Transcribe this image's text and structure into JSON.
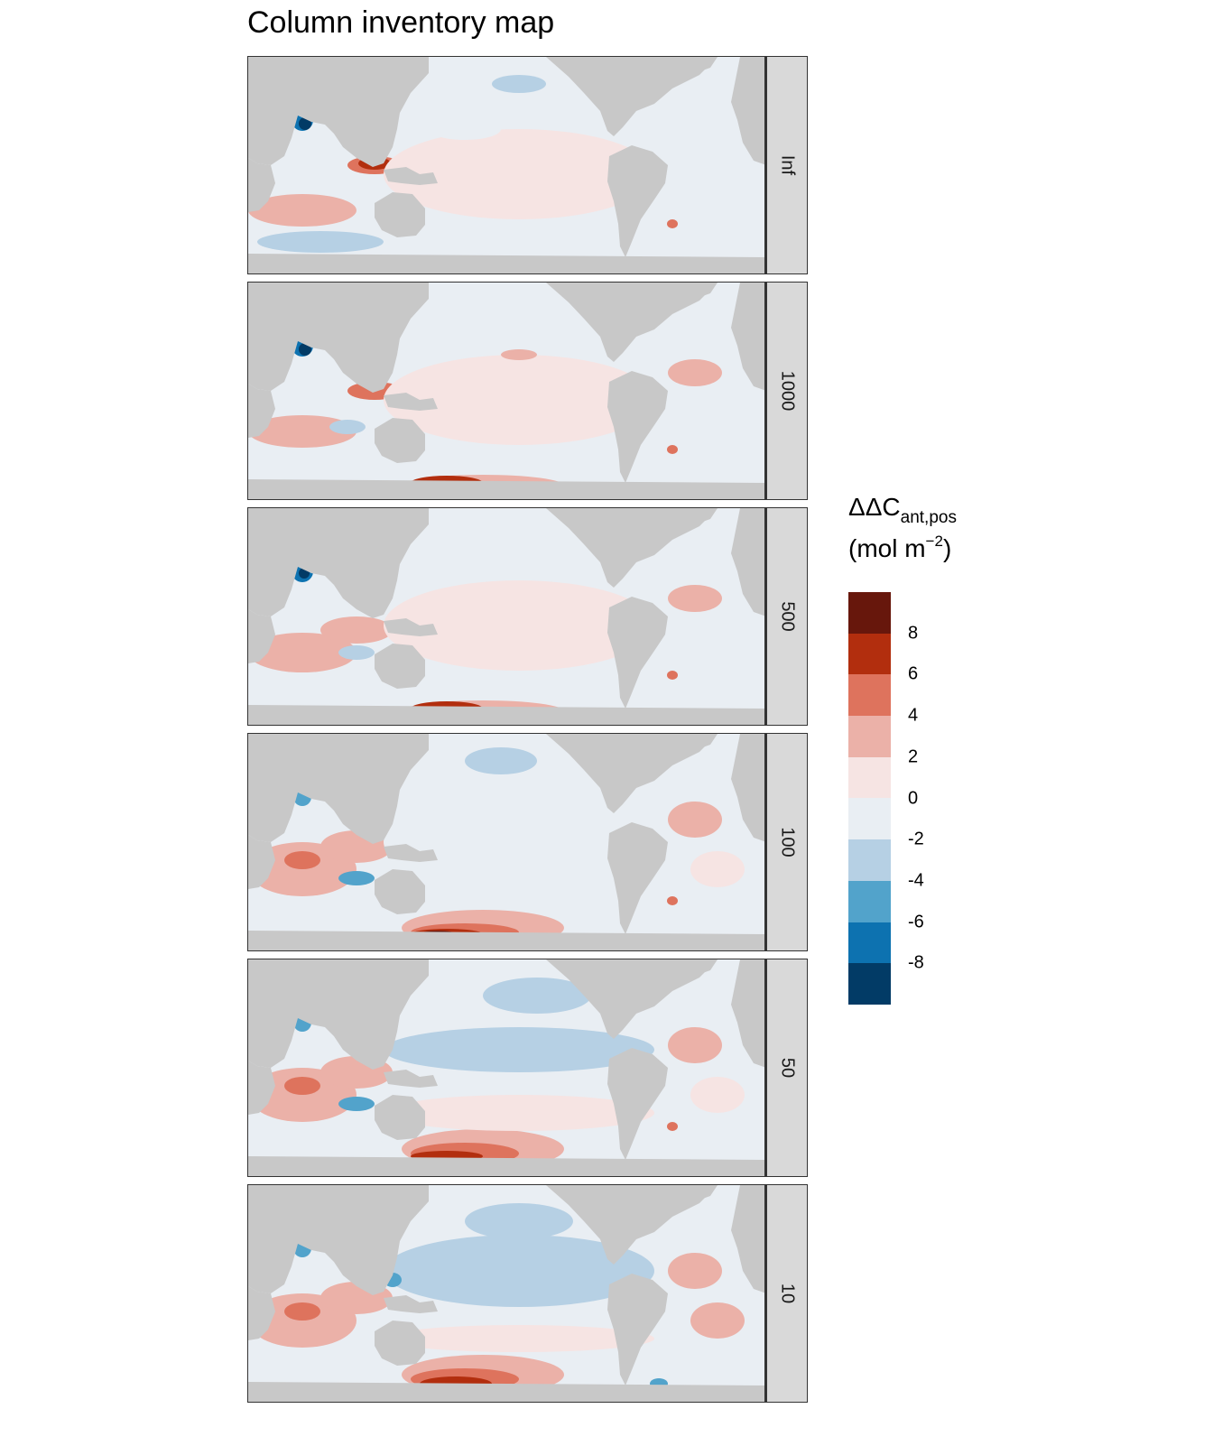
{
  "title": "Column inventory map",
  "colors": {
    "land": "#c8c8c8",
    "strip_bg": "#d9d9d9",
    "ocean_neutral_pos": "#f6e4e3",
    "ocean_neutral_neg": "#e9eef3"
  },
  "facets": [
    {
      "label": "Inf"
    },
    {
      "label": "1000"
    },
    {
      "label": "500"
    },
    {
      "label": "100"
    },
    {
      "label": "50"
    },
    {
      "label": "10"
    }
  ],
  "legend": {
    "title_main": "ΔΔC",
    "title_sub": "ant,pos",
    "title_unit_open": "(mol m",
    "title_unit_sup": "−2",
    "title_unit_close": ")",
    "bins": [
      {
        "color": "#67170c"
      },
      {
        "color": "#b22e0e"
      },
      {
        "color": "#de735d"
      },
      {
        "color": "#ebb1a8"
      },
      {
        "color": "#f6e4e3"
      },
      {
        "color": "#e9eef3"
      },
      {
        "color": "#b6d0e4"
      },
      {
        "color": "#52a3cb"
      },
      {
        "color": "#0d72b0"
      },
      {
        "color": "#023b66"
      }
    ],
    "ticks": [
      "8",
      "6",
      "4",
      "2",
      "0",
      "-2",
      "-4",
      "-6",
      "-8"
    ]
  }
}
